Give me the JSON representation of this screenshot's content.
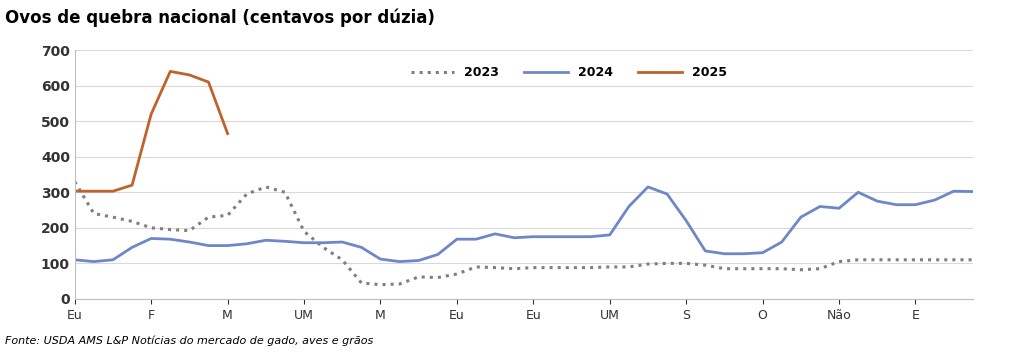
{
  "chart_data": {
    "type": "line",
    "title": "Ovos de quebra nacional (centavos por dúzia)",
    "source": "Fonte: USDA AMS L&P Notícias do mercado de gado, aves e grãos",
    "categories": [
      "Eu",
      null,
      null,
      null,
      "F",
      null,
      null,
      null,
      "M",
      null,
      null,
      null,
      "UM",
      null,
      null,
      null,
      "M",
      null,
      null,
      null,
      "Eu",
      null,
      null,
      null,
      "Eu",
      null,
      null,
      null,
      "UM",
      null,
      null,
      null,
      "S",
      null,
      null,
      null,
      "O",
      null,
      null,
      null,
      "Não",
      null,
      null,
      null,
      "E",
      null,
      null,
      null
    ],
    "series": [
      {
        "name": "2023",
        "color": "#7f7f7f",
        "line_style": "dotted",
        "values": [
          330,
          240,
          230,
          218,
          200,
          195,
          192,
          230,
          235,
          295,
          315,
          300,
          190,
          145,
          110,
          45,
          40,
          42,
          62,
          60,
          70,
          90,
          88,
          85,
          88,
          88,
          88,
          88,
          90,
          90,
          98,
          100,
          100,
          95,
          85,
          85,
          85,
          85,
          82,
          85,
          105,
          110,
          110,
          110,
          110,
          110,
          110,
          110
        ]
      },
      {
        "name": "2024",
        "color": "#6f87c9",
        "line_style": "solid",
        "values": [
          110,
          105,
          110,
          145,
          170,
          168,
          160,
          150,
          150,
          155,
          165,
          162,
          158,
          158,
          160,
          145,
          112,
          105,
          108,
          125,
          168,
          168,
          183,
          172,
          175,
          175,
          175,
          175,
          180,
          260,
          315,
          295,
          220,
          135,
          127,
          127,
          130,
          160,
          230,
          260,
          255,
          300,
          275,
          265,
          265,
          278,
          303,
          302
        ]
      },
      {
        "name": "2025",
        "color": "#c0622b",
        "line_style": "solid",
        "values": [
          303,
          303,
          303,
          320,
          520,
          640,
          630,
          610,
          465,
          null,
          null,
          null,
          null,
          null,
          null,
          null,
          null,
          null,
          null,
          null,
          null,
          null,
          null,
          null,
          null,
          null,
          null,
          null,
          null,
          null,
          null,
          null,
          null,
          null,
          null,
          null,
          null,
          null,
          null,
          null,
          null,
          null,
          null,
          null,
          null,
          null,
          null,
          null
        ]
      }
    ],
    "ylim": [
      0,
      700
    ],
    "yticks": [
      0,
      100,
      200,
      300,
      400,
      500,
      600,
      700
    ],
    "grid": true,
    "legend": "upper center"
  }
}
